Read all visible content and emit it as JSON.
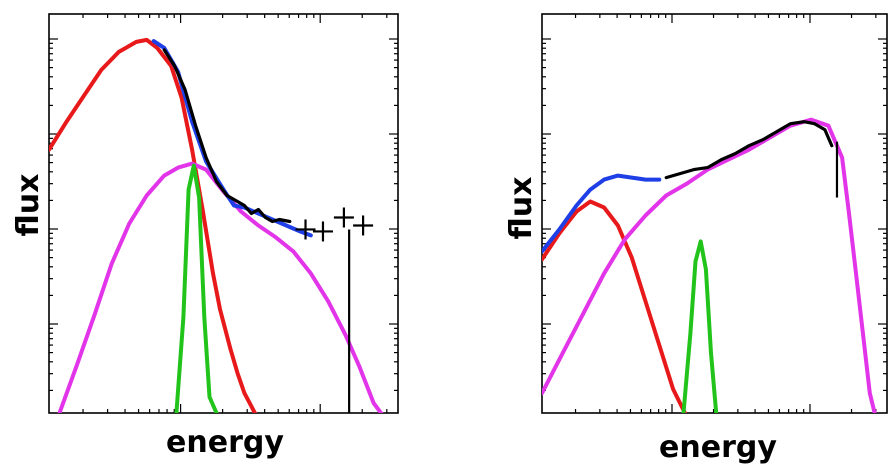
{
  "chart_data": [
    {
      "type": "line",
      "title": "",
      "xlabel": "energy",
      "ylabel": "flux",
      "xscale": "log",
      "yscale": "log",
      "xlim": [
        0,
        10
      ],
      "ylim": [
        0,
        10
      ],
      "grid": false,
      "legend": "none",
      "series": [
        {
          "color": "#e8191a",
          "x": [
            0,
            0.5,
            1,
            1.5,
            2,
            2.5,
            2.8,
            3.1,
            3.5,
            3.8,
            4.1,
            4.4,
            4.7,
            4.9,
            5.2,
            5.4,
            5.6,
            5.9,
            6.1
          ],
          "y": [
            6.6,
            7.3,
            7.95,
            8.6,
            9.05,
            9.3,
            9.35,
            9.15,
            8.7,
            7.9,
            6.6,
            5.1,
            3.5,
            2.6,
            1.6,
            1,
            0.5,
            0,
            -0.4
          ]
        },
        {
          "color": "#e234e8",
          "x": [
            0.3,
            0.8,
            1.3,
            1.8,
            2.3,
            2.8,
            3.3,
            3.7,
            4.1,
            4.5,
            5,
            5.5,
            6,
            6.5,
            7,
            7.5,
            8,
            8.5,
            8.9,
            9.3,
            9.6
          ],
          "y": [
            0,
            1.2,
            2.45,
            3.75,
            4.75,
            5.45,
            5.95,
            6.15,
            6.25,
            6.1,
            5.55,
            5.05,
            4.7,
            4.4,
            4.05,
            3.5,
            2.8,
            1.95,
            1.15,
            0.25,
            -0.1
          ]
        },
        {
          "color": "#22c41b",
          "x": [
            3.65,
            3.85,
            4.0,
            4.15,
            4.3,
            4.45,
            4.6,
            4.8
          ],
          "y": [
            0,
            2.4,
            5.6,
            6.2,
            5.4,
            2.4,
            0.4,
            0
          ]
        },
        {
          "color": "#1f3fe6",
          "x": [
            3.0,
            3.3,
            3.7,
            4.1,
            4.5,
            5.0,
            5.3,
            5.6,
            6.0,
            6.4,
            6.8,
            7.2,
            7.5
          ],
          "y": [
            9.32,
            9.15,
            8.55,
            7.3,
            6.3,
            5.6,
            5.2,
            5.15,
            5.0,
            4.85,
            4.7,
            4.55,
            4.45
          ]
        },
        {
          "color": "#000000",
          "x": [
            3.3,
            3.6,
            3.9,
            4.2,
            4.5,
            4.8,
            5.1,
            5.4,
            5.6,
            5.8,
            6.0,
            6.2,
            6.4,
            6.6,
            6.9
          ],
          "y": [
            9.1,
            8.7,
            8.1,
            7.2,
            6.4,
            5.8,
            5.45,
            5.3,
            5.2,
            5.0,
            5.1,
            4.9,
            4.8,
            4.85,
            4.8
          ]
        }
      ],
      "markers": [
        {
          "color": "#000000",
          "x": [
            7.35,
            7.85,
            8.45,
            9.0
          ],
          "y": [
            4.6,
            4.55,
            4.9,
            4.7
          ]
        }
      ],
      "vline": {
        "color": "#000000",
        "x": 8.6,
        "y": [
          0,
          4.6
        ]
      }
    },
    {
      "type": "line",
      "title": "",
      "xlabel": "energy",
      "ylabel": "flux",
      "xscale": "log",
      "yscale": "log",
      "xlim": [
        0,
        10
      ],
      "ylim": [
        0,
        10
      ],
      "grid": false,
      "legend": "none",
      "series": [
        {
          "color": "#e8191a",
          "x": [
            0,
            0.5,
            1,
            1.4,
            1.8,
            2.2,
            2.6,
            3.0,
            3.4,
            3.8,
            4.2,
            4.7
          ],
          "y": [
            3.85,
            4.5,
            5.05,
            5.3,
            5.15,
            4.7,
            3.9,
            2.8,
            1.7,
            0.6,
            -0.1,
            -0.5
          ]
        },
        {
          "color": "#e234e8",
          "x": [
            0,
            0.6,
            1.2,
            1.8,
            2.4,
            3.0,
            3.6,
            4.2,
            4.8,
            5.4,
            6.0,
            6.6,
            7.2,
            7.8,
            8.3,
            8.7,
            8.9,
            9.1,
            9.3,
            9.5,
            9.7
          ],
          "y": [
            0.5,
            1.5,
            2.5,
            3.5,
            4.35,
            4.95,
            5.45,
            5.75,
            6.1,
            6.35,
            6.6,
            6.9,
            7.2,
            7.35,
            7.2,
            6.4,
            5.0,
            3.5,
            2.0,
            0.5,
            -0.2
          ]
        },
        {
          "color": "#22c41b",
          "x": [
            4.1,
            4.3,
            4.45,
            4.6,
            4.75,
            4.9,
            5.05
          ],
          "y": [
            0,
            2.0,
            3.8,
            4.3,
            3.6,
            1.5,
            0
          ]
        },
        {
          "color": "#1f3fe6",
          "x": [
            0,
            0.5,
            1.0,
            1.4,
            1.8,
            2.2,
            2.6,
            3.0,
            3.4
          ],
          "y": [
            4.05,
            4.6,
            5.2,
            5.6,
            5.85,
            5.95,
            5.9,
            5.85,
            5.85
          ]
        },
        {
          "color": "#000000",
          "x": [
            3.6,
            4.0,
            4.4,
            4.8,
            5.2,
            5.6,
            6.0,
            6.4,
            6.8,
            7.2,
            7.6,
            7.9,
            8.2,
            8.4
          ],
          "y": [
            5.9,
            6.0,
            6.1,
            6.15,
            6.35,
            6.5,
            6.7,
            6.85,
            7.05,
            7.25,
            7.3,
            7.25,
            7.1,
            6.7
          ]
        }
      ],
      "vline": {
        "color": "#000000",
        "x": 8.55,
        "y": [
          5.4,
          6.8
        ]
      }
    }
  ]
}
